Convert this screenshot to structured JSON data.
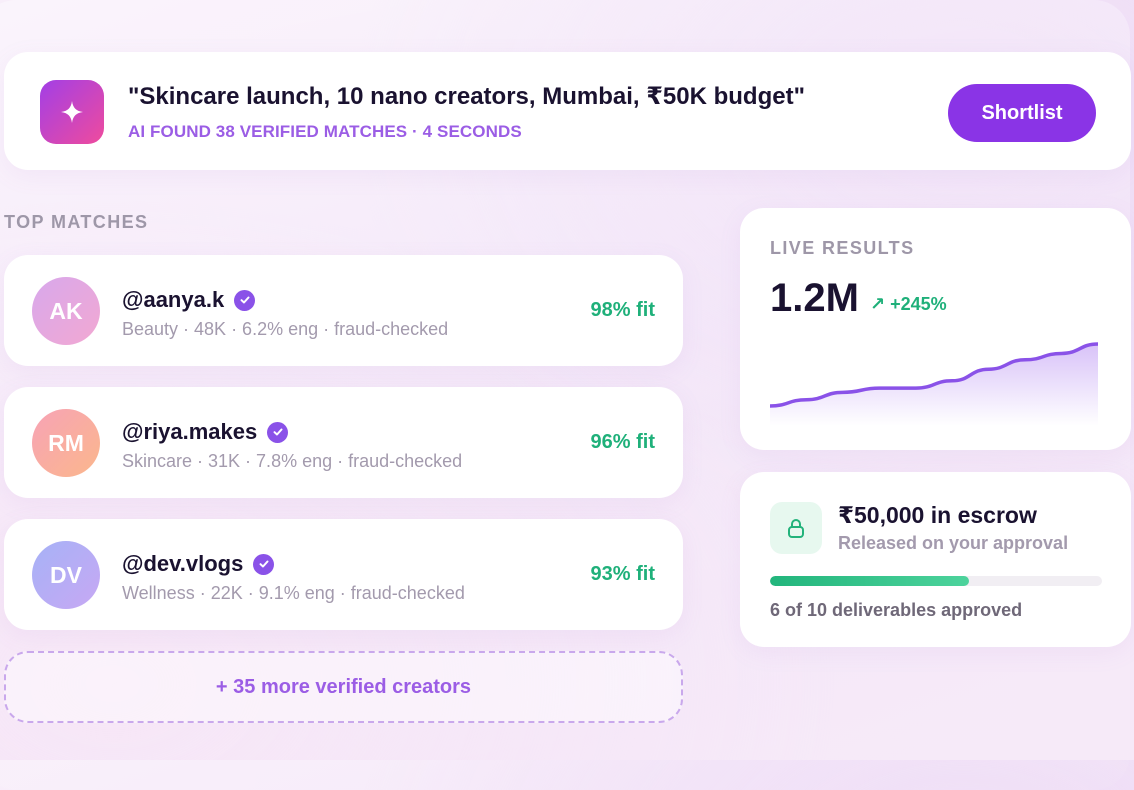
{
  "prompt": {
    "query": "\"Skincare launch, 10 nano creators, Mumbai, ₹50K budget\"",
    "subtitle": "AI FOUND 38 VERIFIED MATCHES · 4 SECONDS",
    "badge_icon": "sparkle-icon",
    "shortlist_label": "Shortlist"
  },
  "matches": {
    "section_label": "TOP MATCHES",
    "creators": [
      {
        "initials": "AK",
        "handle": "@aanya.k",
        "meta": "Beauty · 48K · 6.2% eng · fraud-checked",
        "fit": "98% fit",
        "avatar_colors": [
          "#d8a8ec",
          "#f2a8d2"
        ]
      },
      {
        "initials": "RM",
        "handle": "@riya.makes",
        "meta": "Skincare · 31K · 7.8% eng · fraud-checked",
        "fit": "96% fit",
        "avatar_colors": [
          "#f7a3b6",
          "#fbb78c"
        ]
      },
      {
        "initials": "DV",
        "handle": "@dev.vlogs",
        "meta": "Wellness · 22K · 9.1% eng · fraud-checked",
        "fit": "93% fit",
        "avatar_colors": [
          "#a6b2f6",
          "#c7a8f4"
        ]
      }
    ],
    "more_label": "+ 35 more verified creators"
  },
  "live": {
    "label": "LIVE RESULTS",
    "value": "1.2M",
    "change": "↗ +245%",
    "trend": [
      6,
      12,
      19,
      23,
      23,
      30,
      41,
      50,
      56,
      65
    ]
  },
  "escrow": {
    "icon": "lock-icon",
    "title": "₹50,000 in escrow",
    "subtitle": "Released on your approval",
    "progress_fraction": 0.6,
    "footer": "6 of 10 deliverables approved"
  },
  "colors": {
    "accent": "#8a34e6",
    "success": "#1fb07a",
    "text": "#1a1230"
  }
}
